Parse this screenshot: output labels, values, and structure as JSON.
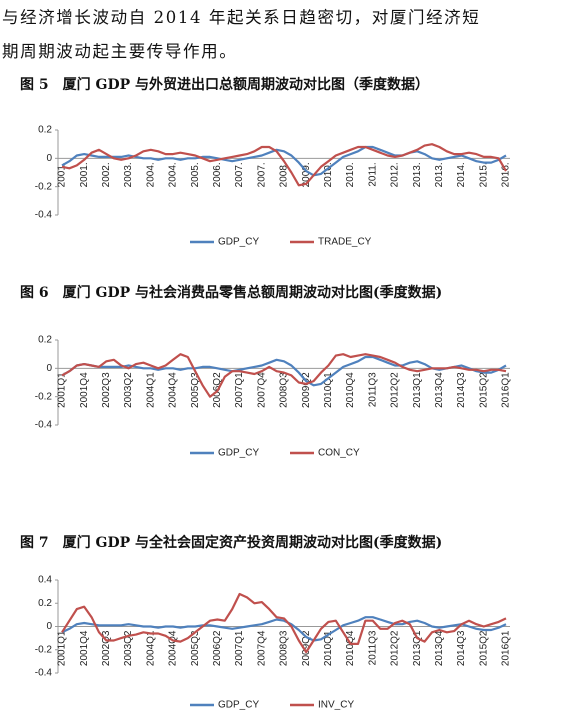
{
  "text": {
    "lines": [
      "与经济增长波动自 2014 年起关系日趋密切，对厦门经济短",
      "期周期波动起主要传导作用。"
    ]
  },
  "chart_data": [
    {
      "type": "line",
      "title": "图 5　厦门 GDP 与外贸进出口总额周期波动对比图（季度数据）",
      "categories": [
        "2001.",
        null,
        null,
        "2001.",
        null,
        null,
        "2002.",
        null,
        null,
        "2003.",
        null,
        null,
        "2004.",
        null,
        null,
        "2004.",
        null,
        null,
        "2005.",
        null,
        null,
        "2006.",
        null,
        null,
        "2007.",
        null,
        null,
        "2007.",
        null,
        null,
        "2008.",
        null,
        null,
        "2009.",
        null,
        null,
        "2010.",
        null,
        null,
        "2010.",
        null,
        null,
        "2011.",
        null,
        null,
        "2012.",
        null,
        null,
        "2013.",
        null,
        null,
        "2013.",
        null,
        null,
        "2014.",
        null,
        null,
        "2015.",
        null,
        null,
        "2016."
      ],
      "ylim": [
        -0.4,
        0.2
      ],
      "yticks": [
        0.2,
        0,
        -0.2,
        -0.4
      ],
      "series": [
        {
          "name": "GDP_CY",
          "color": "#4f81bd",
          "values": [
            -0.05,
            -0.02,
            0.02,
            0.03,
            0.02,
            0.01,
            0.01,
            0.01,
            0.01,
            0.02,
            0.01,
            0,
            0,
            -0.01,
            0,
            0,
            -0.01,
            0,
            0,
            0.01,
            0.01,
            0,
            -0.01,
            -0.02,
            -0.01,
            0,
            0.01,
            0.02,
            0.04,
            0.06,
            0.05,
            0.02,
            -0.03,
            -0.09,
            -0.12,
            -0.11,
            -0.07,
            -0.03,
            0.01,
            0.03,
            0.05,
            0.08,
            0.08,
            0.06,
            0.04,
            0.02,
            0.02,
            0.04,
            0.05,
            0.03,
            0,
            -0.01,
            0,
            0.01,
            0.02,
            0,
            -0.02,
            -0.03,
            -0.03,
            -0.01,
            0.02
          ]
        },
        {
          "name": "TRADE_CY",
          "color": "#c0504d",
          "values": [
            -0.06,
            -0.07,
            -0.05,
            -0.01,
            0.04,
            0.06,
            0.03,
            0,
            -0.01,
            0,
            0.02,
            0.05,
            0.06,
            0.05,
            0.03,
            0.03,
            0.04,
            0.03,
            0.02,
            0,
            -0.02,
            -0.01,
            0,
            0.01,
            0.02,
            0.03,
            0.05,
            0.08,
            0.08,
            0.05,
            -0.02,
            -0.1,
            -0.19,
            -0.18,
            -0.12,
            -0.06,
            -0.02,
            0.02,
            0.04,
            0.06,
            0.08,
            0.08,
            0.06,
            0.04,
            0.02,
            0.01,
            0.02,
            0.04,
            0.06,
            0.09,
            0.1,
            0.08,
            0.05,
            0.03,
            0.03,
            0.04,
            0.03,
            0.01,
            0.01,
            0,
            -0.09
          ]
        }
      ]
    },
    {
      "type": "line",
      "title": "图 6　厦门 GDP 与社会消费品零售总额周期波动对比图(季度数据)",
      "categories": [
        "2001Q1",
        null,
        null,
        "2001Q4",
        null,
        null,
        "2002Q3",
        null,
        null,
        "2003Q2",
        null,
        null,
        "2004Q1",
        null,
        null,
        "2004Q4",
        null,
        null,
        "2005Q3",
        null,
        null,
        "2006Q2",
        null,
        null,
        "2007Q1",
        null,
        null,
        "2007Q4",
        null,
        null,
        "2008Q3",
        null,
        null,
        "2009Q2",
        null,
        null,
        "2010Q1",
        null,
        null,
        "2010Q4",
        null,
        null,
        "2011Q3",
        null,
        null,
        "2012Q2",
        null,
        null,
        "2013Q1",
        null,
        null,
        "2013Q4",
        null,
        null,
        "2014Q3",
        null,
        null,
        "2015Q2",
        null,
        null,
        "2016Q1"
      ],
      "ylim": [
        -0.4,
        0.2
      ],
      "yticks": [
        0.2,
        0,
        -0.2,
        -0.4
      ],
      "series": [
        {
          "name": "GDP_CY",
          "color": "#4f81bd",
          "values": [
            -0.05,
            -0.02,
            0.02,
            0.03,
            0.02,
            0.01,
            0.01,
            0.01,
            0.01,
            0.02,
            0.01,
            0,
            0,
            -0.01,
            0,
            0,
            -0.01,
            0,
            0,
            0.01,
            0.01,
            0,
            -0.01,
            -0.02,
            -0.01,
            0,
            0.01,
            0.02,
            0.04,
            0.06,
            0.05,
            0.02,
            -0.03,
            -0.09,
            -0.12,
            -0.11,
            -0.07,
            -0.03,
            0.01,
            0.03,
            0.05,
            0.08,
            0.08,
            0.06,
            0.04,
            0.02,
            0.02,
            0.04,
            0.05,
            0.03,
            0,
            -0.01,
            0,
            0.01,
            0.02,
            0,
            -0.02,
            -0.03,
            -0.03,
            -0.01,
            0.02
          ]
        },
        {
          "name": "CON_CY",
          "color": "#c0504d",
          "values": [
            -0.05,
            -0.02,
            0.02,
            0.03,
            0.02,
            0.01,
            0.05,
            0.06,
            0.02,
            0,
            0.03,
            0.04,
            0.02,
            0,
            0.02,
            0.06,
            0.1,
            0.08,
            -0.02,
            -0.12,
            -0.2,
            -0.16,
            -0.06,
            -0.02,
            -0.02,
            -0.03,
            -0.04,
            -0.02,
            0.01,
            -0.02,
            -0.03,
            -0.05,
            -0.1,
            -0.11,
            -0.09,
            -0.03,
            0.02,
            0.09,
            0.1,
            0.08,
            0.09,
            0.1,
            0.09,
            0.08,
            0.06,
            0.04,
            0.01,
            -0.01,
            -0.02,
            -0.01,
            0,
            0,
            0,
            0.01,
            0,
            -0.01,
            -0.01,
            -0.02,
            -0.01,
            -0.01,
            -0.02
          ]
        }
      ]
    },
    {
      "type": "line",
      "title": "图 7　厦门 GDP 与全社会固定资产投资周期波动对比图(季度数据)",
      "categories": [
        "2001Q1",
        null,
        null,
        "2001Q4",
        null,
        null,
        "2002Q3",
        null,
        null,
        "2003Q2",
        null,
        null,
        "2004Q1",
        null,
        null,
        "2004Q4",
        null,
        null,
        "2005Q3",
        null,
        null,
        "2006Q2",
        null,
        null,
        "2007Q1",
        null,
        null,
        "2007Q4",
        null,
        null,
        "2008Q3",
        null,
        null,
        "2009Q2",
        null,
        null,
        "2010Q1",
        null,
        null,
        "2010Q4",
        null,
        null,
        "2011Q3",
        null,
        null,
        "2012Q2",
        null,
        null,
        "2013Q1",
        null,
        null,
        "2013Q4",
        null,
        null,
        "2014Q3",
        null,
        null,
        "2015Q2",
        null,
        null,
        "2016Q1"
      ],
      "ylim": [
        -0.4,
        0.4
      ],
      "yticks": [
        0.4,
        0.2,
        0,
        -0.2,
        -0.4
      ],
      "series": [
        {
          "name": "GDP_CY",
          "color": "#4f81bd",
          "values": [
            -0.05,
            -0.02,
            0.02,
            0.03,
            0.02,
            0.01,
            0.01,
            0.01,
            0.01,
            0.02,
            0.01,
            0,
            0,
            -0.01,
            0,
            0,
            -0.01,
            0,
            0,
            0.01,
            0.01,
            0,
            -0.01,
            -0.02,
            -0.01,
            0,
            0.01,
            0.02,
            0.04,
            0.06,
            0.05,
            0.02,
            -0.03,
            -0.09,
            -0.12,
            -0.11,
            -0.07,
            -0.03,
            0.01,
            0.03,
            0.05,
            0.08,
            0.08,
            0.06,
            0.04,
            0.02,
            0.02,
            0.04,
            0.05,
            0.03,
            0,
            -0.01,
            0,
            0.01,
            0.02,
            0,
            -0.02,
            -0.03,
            -0.03,
            -0.01,
            0.02
          ]
        },
        {
          "name": "INV_CY",
          "color": "#c0504d",
          "values": [
            -0.05,
            0.05,
            0.15,
            0.17,
            0.08,
            -0.05,
            -0.12,
            -0.12,
            -0.1,
            -0.08,
            -0.07,
            -0.05,
            -0.06,
            -0.06,
            -0.08,
            -0.12,
            -0.13,
            -0.1,
            -0.05,
            0,
            0.05,
            0.06,
            0.05,
            0.15,
            0.28,
            0.25,
            0.2,
            0.21,
            0.15,
            0.08,
            0.07,
            0,
            -0.12,
            -0.22,
            -0.12,
            -0.02,
            0.04,
            0.05,
            -0.05,
            -0.15,
            -0.15,
            0.05,
            0.05,
            -0.02,
            -0.02,
            0.03,
            0.05,
            0.02,
            -0.1,
            -0.13,
            -0.05,
            -0.03,
            -0.05,
            -0.04,
            0.02,
            0.05,
            0.02,
            0,
            0.02,
            0.04,
            0.07
          ]
        }
      ]
    }
  ]
}
